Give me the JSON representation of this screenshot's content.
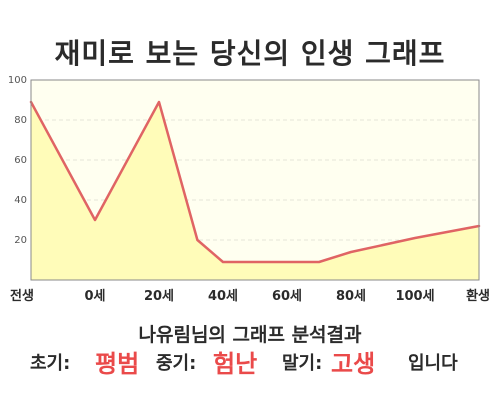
{
  "title": "재미로 보는 당신의 인생 그래프",
  "subtitle": "나유림님의 그래프 분석결과",
  "summary": {
    "early_label": "초기:",
    "early_value": "평범",
    "middle_label": "중기:",
    "middle_value": "험난",
    "late_label": "말기:",
    "late_value": "고생",
    "ending": "입니다"
  },
  "colors": {
    "line": "#e06464",
    "fill": "#fffcb9",
    "plot_background": "#fffff0",
    "accent": "#ea4a4a"
  },
  "chart_data": {
    "type": "area",
    "title": "재미로 보는 당신의 인생 그래프",
    "xlabel": "",
    "ylabel": "",
    "x_categories": [
      "전생",
      "0세",
      "20세",
      "40세",
      "60세",
      "80세",
      "100세",
      "환생"
    ],
    "series": [
      {
        "points": [
          [
            0,
            89
          ],
          [
            1,
            30
          ],
          [
            2,
            89
          ],
          [
            2.6,
            20
          ],
          [
            3,
            9
          ],
          [
            4,
            9
          ],
          [
            4.5,
            9
          ],
          [
            5,
            14
          ],
          [
            6,
            21
          ],
          [
            7,
            27
          ]
        ]
      }
    ],
    "ylim": [
      0,
      100
    ],
    "y_ticks": [
      20,
      40,
      60,
      80,
      100
    ],
    "grid": true,
    "legend": "none"
  }
}
